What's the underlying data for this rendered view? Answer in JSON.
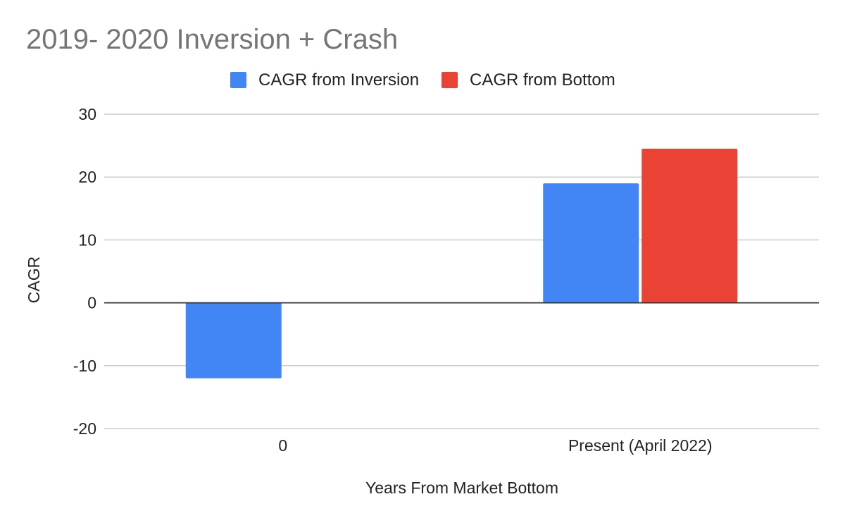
{
  "chart_data": {
    "type": "bar",
    "title": "2019- 2020 Inversion + Crash",
    "xlabel": "Years From Market Bottom",
    "ylabel": "CAGR",
    "categories": [
      "0",
      "Present (April 2022)"
    ],
    "series": [
      {
        "name": "CAGR from Inversion",
        "color": "#4285f4",
        "values": [
          -12,
          19
        ]
      },
      {
        "name": "CAGR from Bottom",
        "color": "#ea4335",
        "values": [
          null,
          24.5
        ]
      }
    ],
    "ylim": [
      -20,
      30
    ],
    "yticks": [
      "30",
      "20",
      "10",
      "0",
      "-10",
      "-20"
    ],
    "grid": true,
    "legend_position": "top"
  }
}
